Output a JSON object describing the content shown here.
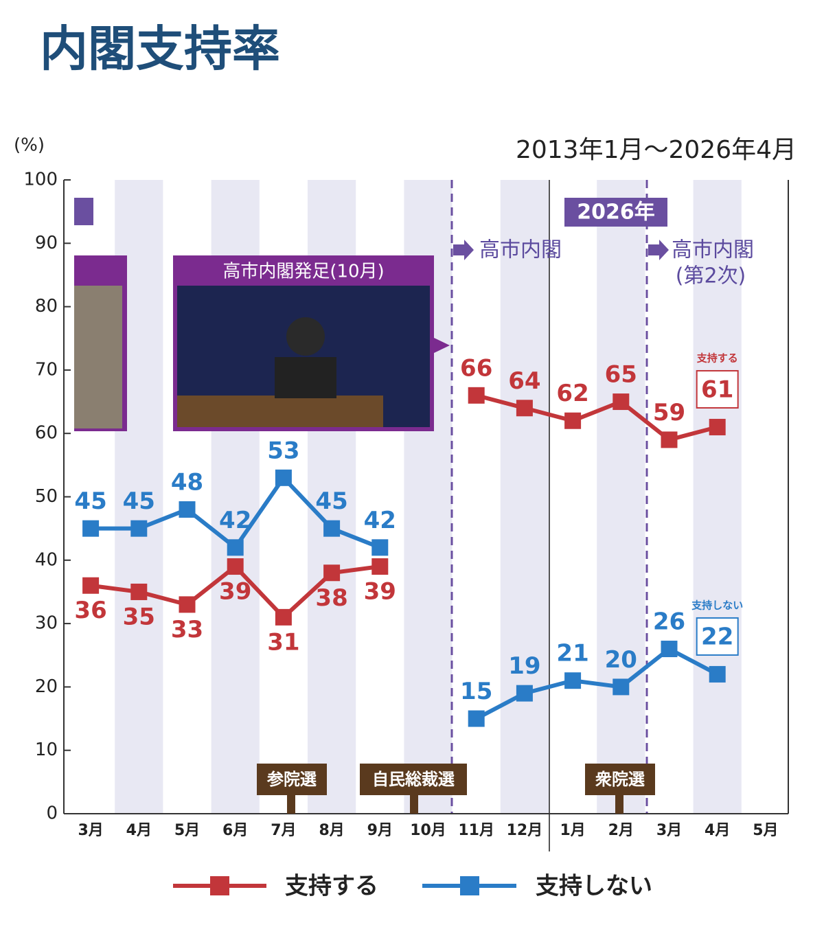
{
  "chart_data": {
    "type": "line",
    "title": "内閣支持率",
    "y_unit_label": "(%)",
    "period": "2013年1月〜2026年4月",
    "categories": [
      "3月",
      "4月",
      "5月",
      "6月",
      "7月",
      "8月",
      "9月",
      "10月",
      "11月",
      "12月",
      "1月",
      "2月",
      "3月",
      "4月",
      "5月"
    ],
    "ylim": [
      0,
      100
    ],
    "yticks": [
      0,
      10,
      20,
      30,
      40,
      50,
      60,
      70,
      80,
      90,
      100
    ],
    "series": [
      {
        "name": "支持する",
        "color": "#c2363a",
        "values": [
          36,
          35,
          33,
          39,
          31,
          38,
          39,
          null,
          66,
          64,
          62,
          65,
          59,
          61,
          null
        ]
      },
      {
        "name": "支持しない",
        "color": "#2a7cc7",
        "values": [
          45,
          45,
          48,
          42,
          53,
          45,
          42,
          null,
          15,
          19,
          21,
          20,
          26,
          22,
          null
        ]
      }
    ],
    "annotations": [
      "2026年",
      "高市内閣",
      "高市内閣",
      "(第2次)",
      "高市内閣発足(10月)",
      "参院選",
      "自民総裁選",
      "衆院選"
    ]
  }
}
